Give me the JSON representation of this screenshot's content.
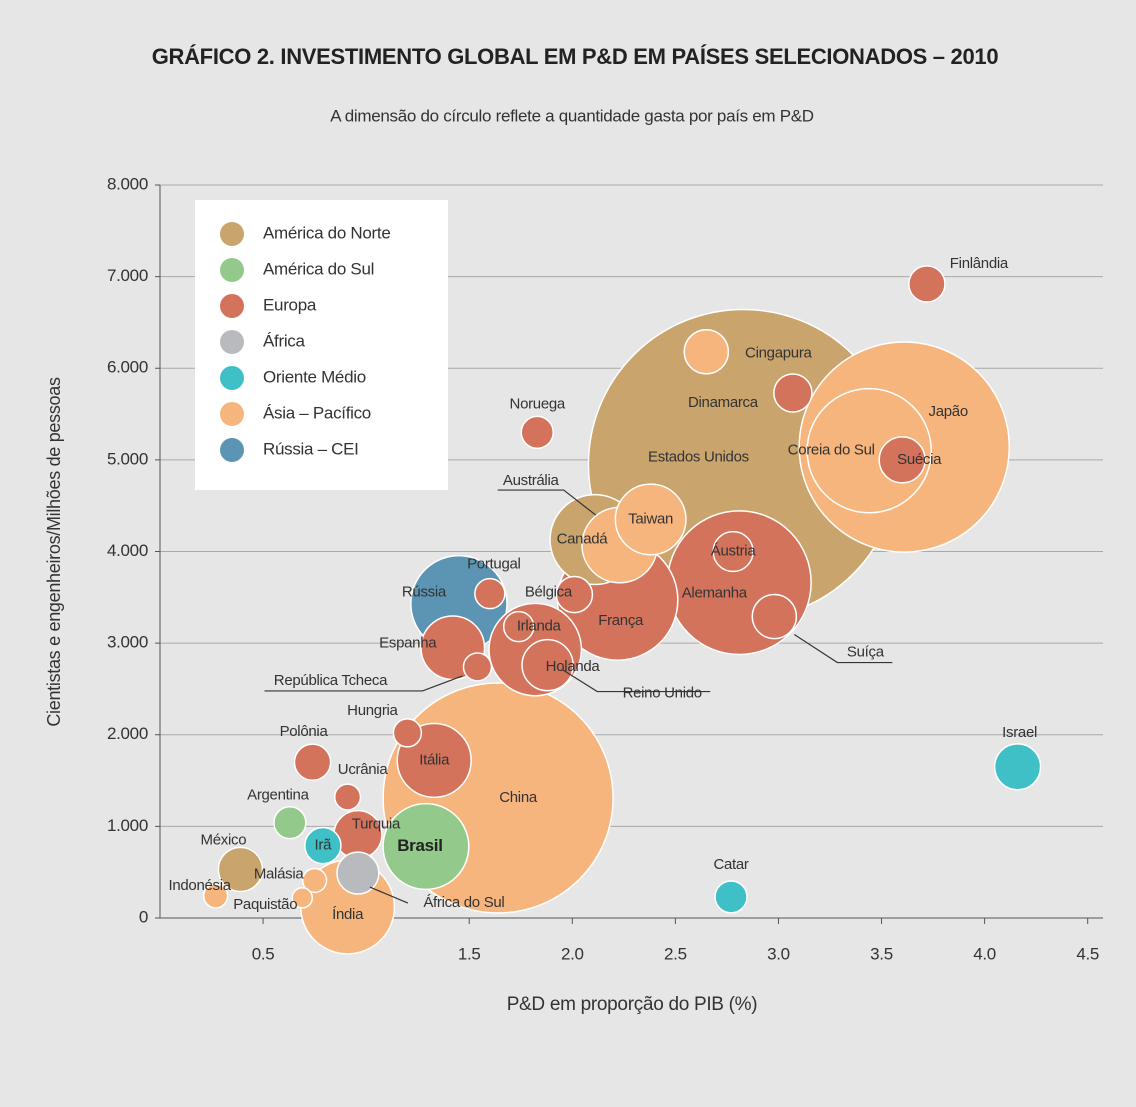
{
  "chart_data": {
    "type": "bubble",
    "title": "GRÁFICO 2. INVESTIMENTO GLOBAL EM P&D EM PAÍSES SELECIONADOS – 2010",
    "subtitle": "A dimensão do círculo reflete a quantidade gasta por país em P&D",
    "x_label": "P&D em proporção do PIB (%)",
    "y_label": "Cientistas e engenheiros/Milhões de pessoas",
    "xlim": [
      0,
      4.55
    ],
    "ylim": [
      0,
      8000
    ],
    "xticks": [
      0.5,
      1.5,
      {
        "value": 2,
        "label": "2.0"
      },
      2.5,
      {
        "value": 3,
        "label": "3.0"
      },
      3.5,
      {
        "value": 4,
        "label": "4.0"
      },
      4.5
    ],
    "yticks": [
      0,
      {
        "value": 1000,
        "label": "1.000"
      },
      {
        "value": 2000,
        "label": "2.000"
      },
      {
        "value": 3000,
        "label": "3.000"
      },
      {
        "value": 4000,
        "label": "4.000"
      },
      {
        "value": 5000,
        "label": "5.000"
      },
      {
        "value": 6000,
        "label": "6.000"
      },
      {
        "value": 7000,
        "label": "7.000"
      },
      {
        "value": 8000,
        "label": "8.000"
      }
    ],
    "grid": true,
    "legend": "upper left",
    "series": [
      {
        "name": "América do Norte",
        "color": "#c9a46c",
        "labels": [
          "Estados Unidos",
          "Canadá",
          "México"
        ],
        "x": [
          2.83,
          2.11,
          0.39
        ],
        "values": [
          4950,
          4130,
          530
        ],
        "sizes": [
          405,
          34,
          8.2
        ]
      },
      {
        "name": "América do Sul",
        "color": "#93c98a",
        "labels": [
          "Brasil",
          "Argentina"
        ],
        "x": [
          1.29,
          0.63
        ],
        "values": [
          780,
          1040
        ],
        "sizes": [
          31,
          4.3
        ]
      },
      {
        "name": "Europa",
        "color": "#d4735c",
        "labels": [
          "Finlândia",
          "Dinamarca",
          "Noruega",
          "Suécia",
          "França",
          "Alemanha",
          "Áustria",
          "Suíça",
          "Bélgica",
          "Portugal",
          "Espanha",
          "República Tcheca",
          "Irlanda",
          "Reino Unido",
          "Holanda",
          "Hungria",
          "Polônia",
          "Itália",
          "Ucrânia",
          "Turquia"
        ],
        "x": [
          3.72,
          3.07,
          1.83,
          3.6,
          2.22,
          2.81,
          2.78,
          2.98,
          2.01,
          1.6,
          1.42,
          1.54,
          1.74,
          1.82,
          1.88,
          1.2,
          0.74,
          1.33,
          0.91,
          0.96
        ],
        "values": [
          6920,
          5730,
          5300,
          5000,
          3470,
          3660,
          4000,
          3290,
          3530,
          3540,
          2950,
          2740,
          3180,
          2930,
          2760,
          2020,
          1700,
          1720,
          1320,
          910
        ],
        "sizes": [
          5.5,
          6.1,
          4.3,
          8.9,
          61,
          87,
          6.7,
          8.2,
          5.5,
          3.8,
          17,
          3.3,
          3.8,
          36,
          11,
          3.3,
          5.5,
          23,
          2.8,
          9.7
        ]
      },
      {
        "name": "África",
        "color": "#b9babd",
        "labels": [
          "África do Sul"
        ],
        "x": [
          0.96
        ],
        "values": [
          490
        ],
        "sizes": [
          7.4
        ]
      },
      {
        "name": "Oriente Médio",
        "color": "#3fbfc6",
        "labels": [
          "Irã",
          "Israel",
          "Catar"
        ],
        "x": [
          0.79,
          4.16,
          2.77
        ],
        "values": [
          790,
          1650,
          230
        ],
        "sizes": [
          5.5,
          8.9,
          4.3
        ]
      },
      {
        "name": "Ásia – Pacífico",
        "color": "#f7b57e",
        "labels": [
          "Japão",
          "Coreia do Sul",
          "Cingapura",
          "Austrália",
          "Taiwan",
          "China",
          "Índia",
          "Indonésia",
          "Malásia",
          "Paquistão"
        ],
        "x": [
          3.61,
          3.44,
          2.65,
          2.23,
          2.38,
          1.64,
          0.91,
          0.27,
          0.75,
          0.69
        ],
        "values": [
          5140,
          5100,
          6180,
          4070,
          4350,
          1310,
          120,
          240,
          410,
          220
        ],
        "sizes": [
          186,
          65,
          8.2,
          24,
          21,
          223,
          37,
          2.4,
          2.4,
          1.7
        ]
      },
      {
        "name": "Rússia – CEI",
        "color": "#5b95b3",
        "labels": [
          "Rússia"
        ],
        "x": [
          1.45
        ],
        "values": [
          3430
        ],
        "sizes": [
          39
        ]
      }
    ]
  }
}
